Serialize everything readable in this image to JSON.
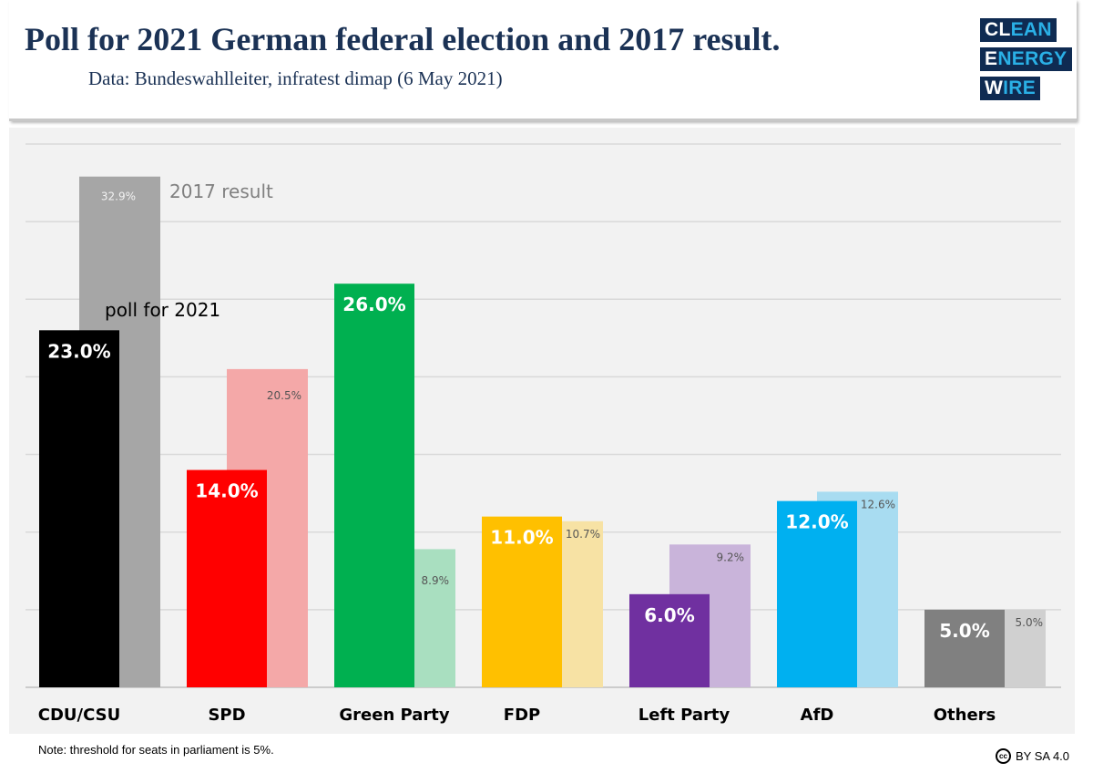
{
  "header": {
    "title": "Poll for 2021 German federal election and 2017 result.",
    "subtitle": "Data: Bundeswahlleiter, infratest dimap (6 May 2021)",
    "logo": [
      "CLEAN",
      "ENERGY",
      "WIRE"
    ]
  },
  "chart_data": {
    "type": "bar",
    "title": "Poll for 2021 German federal election and 2017 result.",
    "categories": [
      "CDU/CSU",
      "SPD",
      "Green Party",
      "FDP",
      "Left Party",
      "AfD",
      "Others"
    ],
    "series": [
      {
        "name": "poll for 2021",
        "values": [
          23.0,
          14.0,
          26.0,
          11.0,
          6.0,
          12.0,
          5.0
        ],
        "labels": [
          "23.0%",
          "14.0%",
          "26.0%",
          "11.0%",
          "6.0%",
          "12.0%",
          "5.0%"
        ],
        "colors": [
          "#000000",
          "#ff0000",
          "#00b050",
          "#ffc000",
          "#7030a0",
          "#00b0f0",
          "#808080"
        ]
      },
      {
        "name": "2017 result",
        "values": [
          32.9,
          20.5,
          8.9,
          10.7,
          9.2,
          12.6,
          5.0
        ],
        "labels": [
          "32.9%",
          "20.5%",
          "8.9%",
          "10.7%",
          "9.2%",
          "12.6%",
          "5.0%"
        ],
        "colors": [
          "#a6a6a6",
          "#f4a8a8",
          "#a9dfc0",
          "#f7e2a4",
          "#c9b4da",
          "#a8dcf1",
          "#d0d0d0"
        ]
      }
    ],
    "ylim": [
      0,
      35
    ],
    "grid": true,
    "gridStep": 5
  },
  "footer": {
    "note": "Note: threshold for seats in parliament is 5%.",
    "license": "BY SA 4.0",
    "license_icon": "cc"
  }
}
